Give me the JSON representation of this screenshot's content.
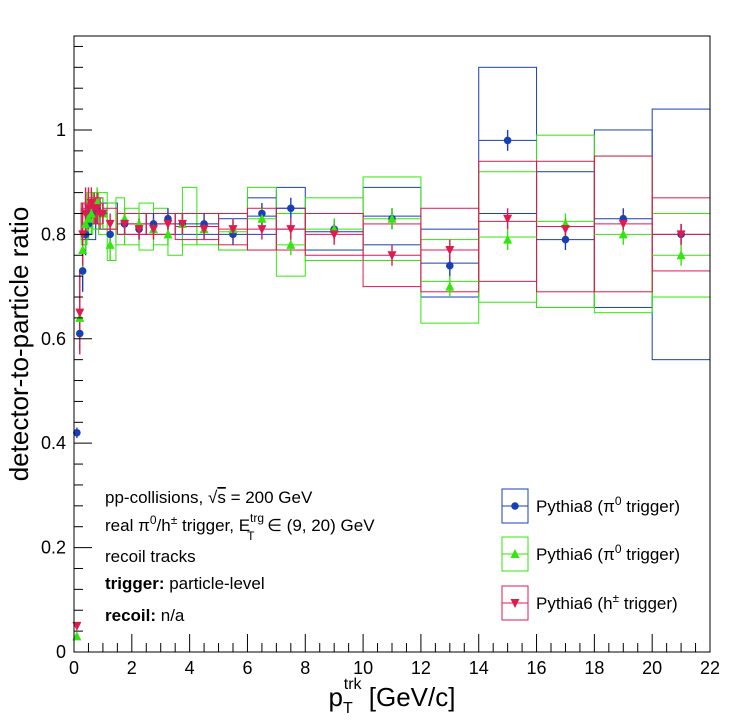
{
  "chart_data": {
    "type": "scatter",
    "xlabel": {
      "main": "p",
      "sup": "trk",
      "sub": "T",
      "unit": " [GeV/c]"
    },
    "ylabel": "detector-to-particle ratio",
    "xlim": [
      0,
      22
    ],
    "ylim": [
      0,
      1.18
    ],
    "x_ticks": [
      0,
      2,
      4,
      6,
      8,
      10,
      12,
      14,
      16,
      18,
      20,
      22
    ],
    "y_ticks": [
      0,
      0.2,
      0.4,
      0.6,
      0.8,
      1
    ],
    "y_tick_labels": [
      "0",
      "0.2",
      "0.4",
      "0.6",
      "0.8",
      "1"
    ],
    "grid": false,
    "legend_position": "bottom-right",
    "annotations": {
      "line1": {
        "text": "pp-collisions, ",
        "sqrt": "s",
        "rest": " = 200 GeV"
      },
      "line2": {
        "pre": "real π",
        "sup0": "0",
        "mid": "/h",
        "suppm": "±",
        "mid2": " trigger, E",
        "sup_trg": "trg",
        "sub_T": "T",
        "post": " ∈ (9, 20) GeV"
      },
      "line3": "recoil tracks",
      "line4": {
        "bold": "trigger:",
        "rest": " particle-level"
      },
      "line5": {
        "bold": "recoil:",
        "rest": " n/a"
      }
    },
    "series": [
      {
        "name": {
          "pre": "Pythia8 (π",
          "sup": "0",
          "post": " trigger)"
        },
        "color": "#1a3fb5",
        "marker": "circle",
        "points": [
          {
            "x": 0.1,
            "y": 0.42,
            "yerr": 0.01
          },
          {
            "x": 0.2,
            "y": 0.61,
            "yerr": 0.03
          },
          {
            "x": 0.3,
            "y": 0.73,
            "yerr": 0.04
          },
          {
            "x": 0.4,
            "y": 0.8,
            "yerr": 0.04
          },
          {
            "x": 0.5,
            "y": 0.82,
            "yerr": 0.03
          },
          {
            "x": 0.6,
            "y": 0.84,
            "yerr": 0.03
          },
          {
            "x": 0.8,
            "y": 0.85,
            "yerr": 0.03
          },
          {
            "x": 1.0,
            "y": 0.84,
            "yerr": 0.02
          },
          {
            "x": 1.25,
            "y": 0.8,
            "yerr": 0.02
          },
          {
            "x": 1.75,
            "y": 0.82,
            "yerr": 0.02
          },
          {
            "x": 2.25,
            "y": 0.81,
            "yerr": 0.02
          },
          {
            "x": 2.75,
            "y": 0.82,
            "yerr": 0.02
          },
          {
            "x": 3.25,
            "y": 0.83,
            "yerr": 0.02
          },
          {
            "x": 3.75,
            "y": 0.82,
            "yerr": 0.02
          },
          {
            "x": 4.5,
            "y": 0.82,
            "yerr": 0.02
          },
          {
            "x": 5.5,
            "y": 0.8,
            "yerr": 0.02
          },
          {
            "x": 6.5,
            "y": 0.84,
            "yerr": 0.02
          },
          {
            "x": 7.5,
            "y": 0.85,
            "yerr": 0.02
          },
          {
            "x": 9.0,
            "y": 0.81,
            "yerr": 0.02
          },
          {
            "x": 11.0,
            "y": 0.83,
            "yerr": 0.02
          },
          {
            "x": 13.0,
            "y": 0.74,
            "yerr": 0.02
          },
          {
            "x": 15.0,
            "y": 0.98,
            "yerr": 0.02
          },
          {
            "x": 17.0,
            "y": 0.79,
            "yerr": 0.02
          },
          {
            "x": 19.0,
            "y": 0.83,
            "yerr": 0.02
          },
          {
            "x": 21.0,
            "y": 0.8,
            "yerr": 0.02
          }
        ],
        "sys_boxes": [
          {
            "x0": 0.25,
            "x1": 0.75,
            "y0": 0.79,
            "y1": 0.85
          },
          {
            "x0": 0.75,
            "x1": 1.5,
            "y0": 0.81,
            "y1": 0.86
          },
          {
            "x0": 1.5,
            "x1": 2.5,
            "y0": 0.8,
            "y1": 0.84
          },
          {
            "x0": 2.5,
            "x1": 3.5,
            "y0": 0.8,
            "y1": 0.84
          },
          {
            "x0": 3.5,
            "x1": 5.0,
            "y0": 0.8,
            "y1": 0.84
          },
          {
            "x0": 5.0,
            "x1": 6.0,
            "y0": 0.77,
            "y1": 0.83
          },
          {
            "x0": 6.0,
            "x1": 7.0,
            "y0": 0.8,
            "y1": 0.87
          },
          {
            "x0": 7.0,
            "x1": 8.0,
            "y0": 0.81,
            "y1": 0.89
          },
          {
            "x0": 8.0,
            "x1": 10.0,
            "y0": 0.77,
            "y1": 0.84
          },
          {
            "x0": 10.0,
            "x1": 12.0,
            "y0": 0.78,
            "y1": 0.89
          },
          {
            "x0": 12.0,
            "x1": 14.0,
            "y0": 0.68,
            "y1": 0.81
          },
          {
            "x0": 14.0,
            "x1": 16.0,
            "y0": 0.84,
            "y1": 1.12
          },
          {
            "x0": 16.0,
            "x1": 18.0,
            "y0": 0.66,
            "y1": 0.92
          },
          {
            "x0": 18.0,
            "x1": 20.0,
            "y0": 0.66,
            "y1": 1.0
          },
          {
            "x0": 20.0,
            "x1": 22.0,
            "y0": 0.56,
            "y1": 1.04
          }
        ]
      },
      {
        "name": {
          "pre": "Pythia6 (π",
          "sup": "0",
          "post": " trigger)"
        },
        "color": "#33e60d",
        "marker": "triangle-up",
        "points": [
          {
            "x": 0.1,
            "y": 0.03,
            "yerr": 0.005
          },
          {
            "x": 0.2,
            "y": 0.64,
            "yerr": 0.05
          },
          {
            "x": 0.3,
            "y": 0.77,
            "yerr": 0.05
          },
          {
            "x": 0.4,
            "y": 0.82,
            "yerr": 0.05
          },
          {
            "x": 0.5,
            "y": 0.83,
            "yerr": 0.04
          },
          {
            "x": 0.6,
            "y": 0.84,
            "yerr": 0.04
          },
          {
            "x": 0.8,
            "y": 0.86,
            "yerr": 0.03
          },
          {
            "x": 1.0,
            "y": 0.84,
            "yerr": 0.03
          },
          {
            "x": 1.25,
            "y": 0.78,
            "yerr": 0.03
          },
          {
            "x": 1.75,
            "y": 0.83,
            "yerr": 0.02
          },
          {
            "x": 2.25,
            "y": 0.82,
            "yerr": 0.02
          },
          {
            "x": 2.75,
            "y": 0.81,
            "yerr": 0.02
          },
          {
            "x": 3.25,
            "y": 0.8,
            "yerr": 0.02
          },
          {
            "x": 3.75,
            "y": 0.82,
            "yerr": 0.02
          },
          {
            "x": 4.5,
            "y": 0.81,
            "yerr": 0.02
          },
          {
            "x": 5.5,
            "y": 0.81,
            "yerr": 0.02
          },
          {
            "x": 6.5,
            "y": 0.83,
            "yerr": 0.02
          },
          {
            "x": 7.5,
            "y": 0.78,
            "yerr": 0.02
          },
          {
            "x": 9.0,
            "y": 0.81,
            "yerr": 0.02
          },
          {
            "x": 11.0,
            "y": 0.83,
            "yerr": 0.02
          },
          {
            "x": 13.0,
            "y": 0.7,
            "yerr": 0.02
          },
          {
            "x": 15.0,
            "y": 0.79,
            "yerr": 0.02
          },
          {
            "x": 17.0,
            "y": 0.82,
            "yerr": 0.02
          },
          {
            "x": 19.0,
            "y": 0.8,
            "yerr": 0.02
          },
          {
            "x": 21.0,
            "y": 0.76,
            "yerr": 0.02
          }
        ],
        "sys_boxes": [
          {
            "x0": 0.25,
            "x1": 0.45,
            "y0": 0.78,
            "y1": 0.86
          },
          {
            "x0": 0.45,
            "x1": 0.65,
            "y0": 0.8,
            "y1": 0.88
          },
          {
            "x0": 0.65,
            "x1": 0.85,
            "y0": 0.81,
            "y1": 0.88
          },
          {
            "x0": 0.85,
            "x1": 1.15,
            "y0": 0.8,
            "y1": 0.88
          },
          {
            "x0": 1.15,
            "x1": 1.45,
            "y0": 0.75,
            "y1": 0.86
          },
          {
            "x0": 1.45,
            "x1": 1.75,
            "y0": 0.78,
            "y1": 0.87
          },
          {
            "x0": 1.75,
            "x1": 2.25,
            "y0": 0.78,
            "y1": 0.85
          },
          {
            "x0": 2.25,
            "x1": 2.75,
            "y0": 0.77,
            "y1": 0.86
          },
          {
            "x0": 2.75,
            "x1": 3.25,
            "y0": 0.78,
            "y1": 0.85
          },
          {
            "x0": 3.25,
            "x1": 3.75,
            "y0": 0.76,
            "y1": 0.84
          },
          {
            "x0": 3.75,
            "x1": 4.25,
            "y0": 0.78,
            "y1": 0.89
          },
          {
            "x0": 4.25,
            "x1": 5.0,
            "y0": 0.78,
            "y1": 0.84
          },
          {
            "x0": 5.0,
            "x1": 6.0,
            "y0": 0.77,
            "y1": 0.84
          },
          {
            "x0": 6.0,
            "x1": 7.0,
            "y0": 0.77,
            "y1": 0.89
          },
          {
            "x0": 7.0,
            "x1": 8.0,
            "y0": 0.72,
            "y1": 0.84
          },
          {
            "x0": 8.0,
            "x1": 10.0,
            "y0": 0.75,
            "y1": 0.87
          },
          {
            "x0": 10.0,
            "x1": 12.0,
            "y0": 0.75,
            "y1": 0.91
          },
          {
            "x0": 12.0,
            "x1": 14.0,
            "y0": 0.63,
            "y1": 0.79
          },
          {
            "x0": 14.0,
            "x1": 16.0,
            "y0": 0.67,
            "y1": 0.92
          },
          {
            "x0": 16.0,
            "x1": 18.0,
            "y0": 0.66,
            "y1": 0.99
          },
          {
            "x0": 18.0,
            "x1": 20.0,
            "y0": 0.65,
            "y1": 0.95
          },
          {
            "x0": 20.0,
            "x1": 22.0,
            "y0": 0.68,
            "y1": 0.84
          }
        ]
      },
      {
        "name": {
          "pre": "Pythia6 (h",
          "sup": "±",
          "post": " trigger)"
        },
        "color": "#e0194f",
        "marker": "triangle-down",
        "points": [
          {
            "x": 0.1,
            "y": 0.05,
            "yerr": 0.005
          },
          {
            "x": 0.2,
            "y": 0.65,
            "yerr": 0.08
          },
          {
            "x": 0.3,
            "y": 0.8,
            "yerr": 0.06
          },
          {
            "x": 0.4,
            "y": 0.84,
            "yerr": 0.05
          },
          {
            "x": 0.5,
            "y": 0.85,
            "yerr": 0.04
          },
          {
            "x": 0.6,
            "y": 0.86,
            "yerr": 0.03
          },
          {
            "x": 0.7,
            "y": 0.85,
            "yerr": 0.03
          },
          {
            "x": 0.8,
            "y": 0.85,
            "yerr": 0.03
          },
          {
            "x": 0.9,
            "y": 0.84,
            "yerr": 0.03
          },
          {
            "x": 1.0,
            "y": 0.84,
            "yerr": 0.02
          },
          {
            "x": 1.25,
            "y": 0.82,
            "yerr": 0.02
          },
          {
            "x": 1.75,
            "y": 0.82,
            "yerr": 0.02
          },
          {
            "x": 2.25,
            "y": 0.81,
            "yerr": 0.02
          },
          {
            "x": 2.75,
            "y": 0.81,
            "yerr": 0.02
          },
          {
            "x": 3.25,
            "y": 0.82,
            "yerr": 0.02
          },
          {
            "x": 3.75,
            "y": 0.82,
            "yerr": 0.02
          },
          {
            "x": 4.5,
            "y": 0.81,
            "yerr": 0.02
          },
          {
            "x": 5.5,
            "y": 0.81,
            "yerr": 0.02
          },
          {
            "x": 6.5,
            "y": 0.81,
            "yerr": 0.02
          },
          {
            "x": 7.5,
            "y": 0.81,
            "yerr": 0.02
          },
          {
            "x": 9.0,
            "y": 0.8,
            "yerr": 0.02
          },
          {
            "x": 11.0,
            "y": 0.76,
            "yerr": 0.02
          },
          {
            "x": 13.0,
            "y": 0.77,
            "yerr": 0.02
          },
          {
            "x": 15.0,
            "y": 0.83,
            "yerr": 0.02
          },
          {
            "x": 17.0,
            "y": 0.81,
            "yerr": 0.02
          },
          {
            "x": 19.0,
            "y": 0.82,
            "yerr": 0.02
          },
          {
            "x": 21.0,
            "y": 0.8,
            "yerr": 0.02
          }
        ],
        "sys_boxes": [
          {
            "x0": 0.25,
            "x1": 0.5,
            "y0": 0.8,
            "y1": 0.86
          },
          {
            "x0": 0.5,
            "x1": 0.75,
            "y0": 0.82,
            "y1": 0.87
          },
          {
            "x0": 0.75,
            "x1": 1.0,
            "y0": 0.82,
            "y1": 0.87
          },
          {
            "x0": 1.0,
            "x1": 1.5,
            "y0": 0.81,
            "y1": 0.85
          },
          {
            "x0": 1.5,
            "x1": 2.5,
            "y0": 0.8,
            "y1": 0.84
          },
          {
            "x0": 2.5,
            "x1": 3.5,
            "y0": 0.8,
            "y1": 0.84
          },
          {
            "x0": 3.5,
            "x1": 5.0,
            "y0": 0.79,
            "y1": 0.84
          },
          {
            "x0": 5.0,
            "x1": 6.0,
            "y0": 0.78,
            "y1": 0.84
          },
          {
            "x0": 6.0,
            "x1": 7.0,
            "y0": 0.77,
            "y1": 0.85
          },
          {
            "x0": 7.0,
            "x1": 8.0,
            "y0": 0.77,
            "y1": 0.85
          },
          {
            "x0": 8.0,
            "x1": 10.0,
            "y0": 0.76,
            "y1": 0.84
          },
          {
            "x0": 10.0,
            "x1": 12.0,
            "y0": 0.7,
            "y1": 0.82
          },
          {
            "x0": 12.0,
            "x1": 14.0,
            "y0": 0.69,
            "y1": 0.85
          },
          {
            "x0": 14.0,
            "x1": 16.0,
            "y0": 0.71,
            "y1": 0.94
          },
          {
            "x0": 16.0,
            "x1": 18.0,
            "y0": 0.69,
            "y1": 0.94
          },
          {
            "x0": 18.0,
            "x1": 20.0,
            "y0": 0.69,
            "y1": 0.95
          },
          {
            "x0": 20.0,
            "x1": 22.0,
            "y0": 0.73,
            "y1": 0.87
          }
        ]
      }
    ]
  }
}
